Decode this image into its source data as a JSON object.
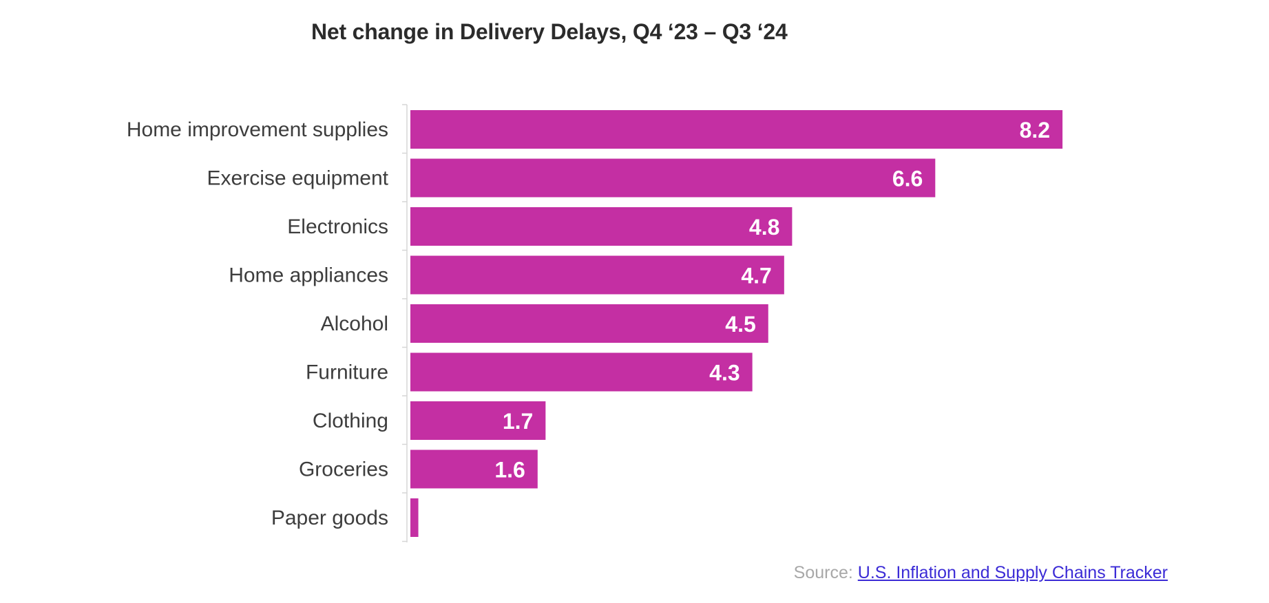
{
  "chart_data": {
    "type": "bar",
    "orientation": "horizontal",
    "title": "Net change in Delivery Delays, Q4 ‘23 – Q3 ‘24",
    "categories": [
      "Home improvement supplies",
      "Exercise equipment",
      "Electronics",
      "Home appliances",
      "Alcohol",
      "Furniture",
      "Clothing",
      "Groceries",
      "Paper goods"
    ],
    "values": [
      8.2,
      6.6,
      4.8,
      4.7,
      4.5,
      4.3,
      1.7,
      1.6,
      0.1
    ],
    "value_labels": [
      "8.2",
      "6.6",
      "4.8",
      "4.7",
      "4.5",
      "4.3",
      "1.7",
      "1.6",
      ""
    ],
    "xlim": [
      0,
      10
    ],
    "grid": false,
    "legend": "none",
    "bar_color": "#c42fa3"
  },
  "source": {
    "prefix": "Source: ",
    "link_text": "U.S. Inflation and Supply Chains Tracker"
  }
}
